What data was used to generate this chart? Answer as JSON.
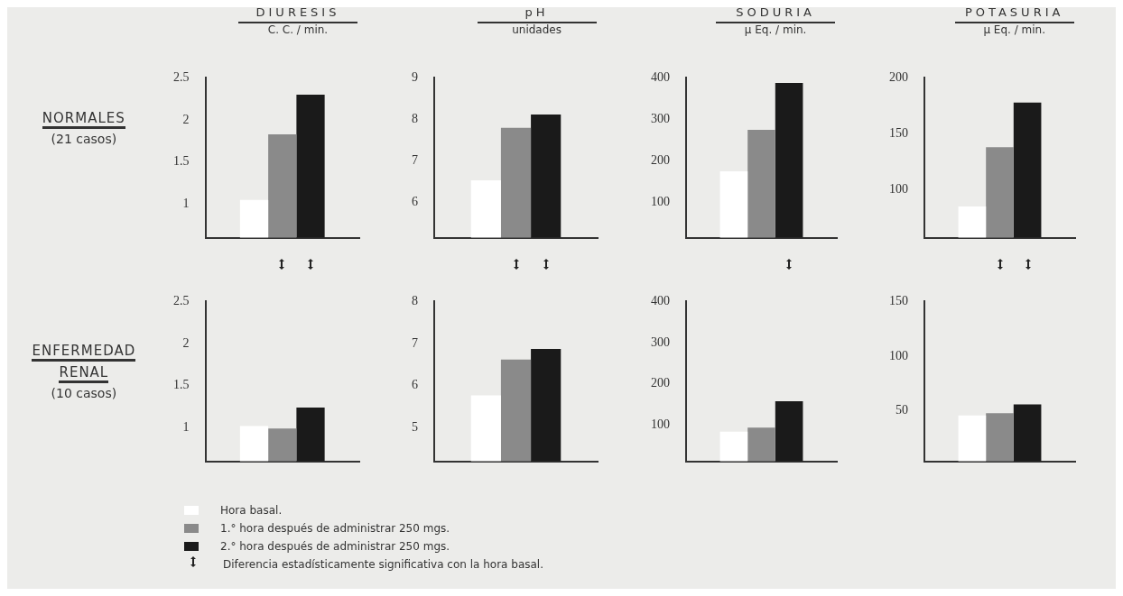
{
  "chart_data": [
    {
      "type": "bar",
      "title": "DIURESIS",
      "subtitle": "C. C. / min.",
      "categories": [
        null
      ],
      "series": [
        {
          "name": "Hora basal.",
          "color": "#ffffff",
          "values": [
            1.05
          ]
        },
        {
          "name": "1.° hora después de administrar 250 mgs.",
          "color": "#8a8a8a",
          "values": [
            1.83
          ]
        },
        {
          "name": "2.° hora después de administrar 250 mgs.",
          "color": "#1a1a1a",
          "values": [
            2.3
          ]
        }
      ],
      "ylim": [
        0.6,
        2.5
      ],
      "yticks": [
        1,
        1.5,
        2,
        2.5
      ],
      "legend": "bottom",
      "annotations": [
        "NORMALES",
        "(21 casos)"
      ]
    },
    {
      "type": "bar",
      "title": "pH",
      "subtitle": "unidades",
      "categories": [
        null
      ],
      "series": [
        {
          "color": "#ffffff",
          "values": [
            6.53
          ]
        },
        {
          "color": "#8a8a8a",
          "values": [
            7.8
          ]
        },
        {
          "color": "#1a1a1a",
          "values": [
            8.12
          ]
        }
      ],
      "ylim": [
        5.15,
        9
      ],
      "yticks": [
        6,
        7,
        8,
        9
      ]
    },
    {
      "type": "bar",
      "title": "SODURIA",
      "subtitle": "µ Eq. / min.",
      "categories": [
        null
      ],
      "series": [
        {
          "color": "#ffffff",
          "values": [
            175
          ]
        },
        {
          "color": "#8a8a8a",
          "values": [
            275
          ]
        },
        {
          "color": "#1a1a1a",
          "values": [
            388
          ]
        }
      ],
      "ylim": [
        15,
        400
      ],
      "yticks": [
        100,
        200,
        300,
        400
      ]
    },
    {
      "type": "bar",
      "title": "POTASURIA",
      "subtitle": "µ Eq. / min.",
      "categories": [
        null
      ],
      "series": [
        {
          "color": "#ffffff",
          "values": [
            85
          ]
        },
        {
          "color": "#8a8a8a",
          "values": [
            138
          ]
        },
        {
          "color": "#1a1a1a",
          "values": [
            178
          ]
        }
      ],
      "ylim": [
        57,
        200
      ],
      "yticks": [
        100,
        150,
        200
      ]
    },
    {
      "type": "bar",
      "categories": [
        null
      ],
      "series": [
        {
          "color": "#ffffff",
          "values": [
            1.02
          ]
        },
        {
          "color": "#8a8a8a",
          "values": [
            0.99
          ]
        },
        {
          "color": "#1a1a1a",
          "values": [
            1.24
          ]
        }
      ],
      "ylim": [
        0.6,
        2.5
      ],
      "yticks": [
        1,
        1.5,
        2,
        2.5
      ],
      "annotations": [
        "ENFERMEDAD",
        "RENAL",
        "(10 casos)"
      ]
    },
    {
      "type": "bar",
      "categories": [
        null
      ],
      "series": [
        {
          "color": "#ffffff",
          "values": [
            5.77
          ]
        },
        {
          "color": "#8a8a8a",
          "values": [
            6.62
          ]
        },
        {
          "color": "#1a1a1a",
          "values": [
            6.87
          ]
        }
      ],
      "ylim": [
        4.2,
        8
      ],
      "yticks": [
        5,
        6,
        7,
        8
      ]
    },
    {
      "type": "bar",
      "categories": [
        null
      ],
      "series": [
        {
          "color": "#ffffff",
          "values": [
            84
          ]
        },
        {
          "color": "#8a8a8a",
          "values": [
            94
          ]
        },
        {
          "color": "#1a1a1a",
          "values": [
            158
          ]
        }
      ],
      "ylim": [
        12,
        400
      ],
      "yticks": [
        100,
        200,
        300,
        400
      ]
    },
    {
      "type": "bar",
      "categories": [
        null
      ],
      "series": [
        {
          "color": "#ffffff",
          "values": [
            46
          ]
        },
        {
          "color": "#8a8a8a",
          "values": [
            48
          ]
        },
        {
          "color": "#1a1a1a",
          "values": [
            56
          ]
        }
      ],
      "ylim": [
        4,
        150
      ],
      "yticks": [
        50,
        100,
        150
      ],
      "annotations": [
        "Diferencia estadísticamente significativa con la hora basal."
      ]
    }
  ]
}
